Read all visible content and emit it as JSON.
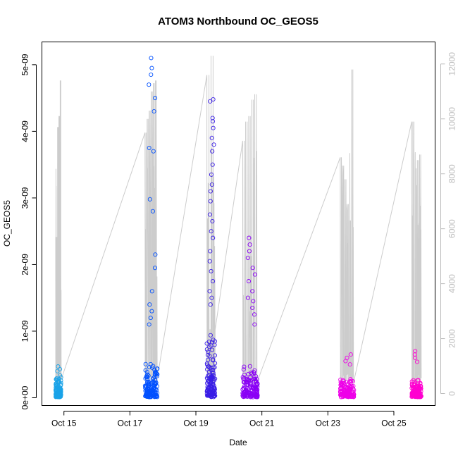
{
  "chart_data": {
    "type": "scatter",
    "title": "ATOM3 Northbound OC_GEOS5",
    "xlabel": "Date",
    "ylabel": "OC_GEOS5",
    "x_ticks": [
      "Oct 15",
      "Oct 17",
      "Oct 19",
      "Oct 21",
      "Oct 23",
      "Oct 25"
    ],
    "y_ticks": [
      "0e+00",
      "1e-09",
      "2e-09",
      "3e-09",
      "4e-09",
      "5e-09"
    ],
    "y_tick_values": [
      0,
      1e-09,
      2e-09,
      3e-09,
      4e-09,
      5e-09
    ],
    "ylim": [
      0,
      5.3e-09
    ],
    "xlim": [
      "2016-10-14T08:00",
      "2016-10-26T06:00"
    ],
    "y2_ticks": [
      "0",
      "2000",
      "4000",
      "6000",
      "8000",
      "10000",
      "12000"
    ],
    "y2_tick_values": [
      0,
      2000,
      4000,
      6000,
      8000,
      10000,
      12000
    ],
    "y2lim": [
      0,
      12700
    ],
    "points_color_ramp": [
      "#1aa3e8",
      "#0040ff",
      "#3300e6",
      "#8800ff",
      "#ee00ee",
      "#ff00cc"
    ],
    "altitude_line_color": "#cccccc",
    "segments": [
      {
        "start": "2016-10-14T18:00",
        "end": "2016-10-14T22:00",
        "color": "#1aa3e8",
        "base_max": 3.5e-10,
        "spikes": [
          4.7e-10,
          4.3e-10,
          4e-10
        ],
        "alt_peaks": [
          5700,
          9700,
          10100,
          11400
        ]
      },
      {
        "start": "2016-10-17T11:00",
        "end": "2016-10-17T20:00",
        "color": "#0050ff",
        "base_max": 6e-10,
        "spikes": [
          5.1e-09,
          4.95e-09,
          4.85e-09,
          4.7e-09,
          4.5e-09,
          4.3e-09,
          3.75e-09,
          3.7e-09,
          2.98e-09,
          2.8e-09,
          2.15e-09,
          1.95e-09,
          1.6e-09,
          1.4e-09,
          1.3e-09,
          1.2e-09,
          1.1e-09
        ],
        "alt_peaks": [
          9500,
          10000,
          10300,
          11000,
          11300,
          11400
        ]
      },
      {
        "start": "2016-10-19T08:00",
        "end": "2016-10-19T14:00",
        "color": "#3a1ee6",
        "base_max": 1.05e-09,
        "spikes": [
          4.48e-09,
          4.45e-09,
          4.2e-09,
          4.15e-09,
          4.05e-09,
          3.9e-09,
          3.8e-09,
          3.7e-09,
          3.5e-09,
          3.35e-09,
          3.2e-09,
          3.1e-09,
          2.95e-09,
          2.75e-09,
          2.65e-09,
          2.5e-09,
          2.4e-09,
          2.2e-09,
          2.05e-09,
          1.9e-09,
          1.75e-09,
          1.6e-09,
          1.5e-09,
          1.4e-09
        ],
        "alt_peaks": [
          11600,
          12300
        ]
      },
      {
        "start": "2016-10-20T10:00",
        "end": "2016-10-20T21:00",
        "color": "#8a00f5",
        "base_max": 5e-10,
        "spikes": [
          2.4e-09,
          2.3e-09,
          2.2e-09,
          2.1e-09,
          1.95e-09,
          1.85e-09,
          1.75e-09,
          1.6e-09,
          1.5e-09,
          1.45e-09,
          1.35e-09,
          1.25e-09,
          1.1e-09
        ],
        "alt_peaks": [
          9200,
          9900,
          10100,
          10700,
          10900
        ]
      },
      {
        "start": "2016-10-23T09:00",
        "end": "2016-10-23T19:00",
        "color": "#ee00e8",
        "base_max": 3e-10,
        "spikes": [
          6.5e-10,
          6e-10,
          5.5e-10,
          5e-10
        ],
        "alt_peaks": [
          8600,
          8300,
          7800,
          6900,
          6300,
          11800
        ]
      },
      {
        "start": "2016-10-25T13:00",
        "end": "2016-10-25T20:00",
        "color": "#ff00d0",
        "base_max": 3e-10,
        "spikes": [
          7e-10,
          6.5e-10,
          6e-10,
          5.4e-10
        ],
        "alt_peaks": [
          9900,
          8200,
          8500,
          8700
        ]
      }
    ],
    "grid": false,
    "legend": "none"
  }
}
